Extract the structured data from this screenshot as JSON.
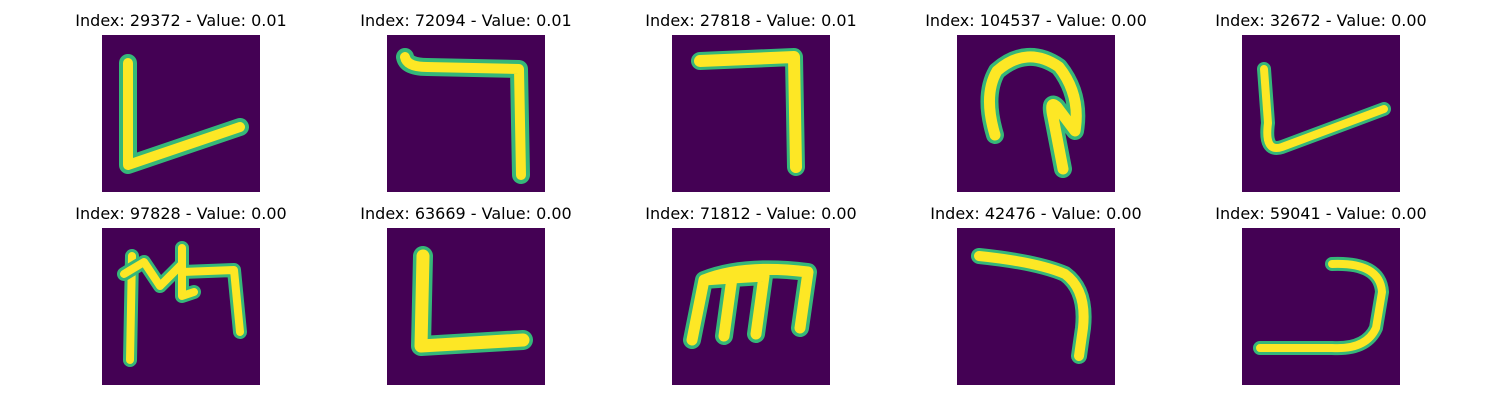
{
  "figure": {
    "background": "#ffffff",
    "colormap": {
      "background": "#440154",
      "stroke_edge": "#35b779",
      "stroke_core": "#fde725"
    },
    "panels": [
      {
        "title": "Index: 29372 - Value: 0.01"
      },
      {
        "title": "Index: 72094 - Value: 0.01"
      },
      {
        "title": "Index: 27818 - Value: 0.01"
      },
      {
        "title": "Index: 104537 - Value: 0.00"
      },
      {
        "title": "Index: 32672 - Value: 0.00"
      },
      {
        "title": "Index: 97828 - Value: 0.00"
      },
      {
        "title": "Index: 63669 - Value: 0.00"
      },
      {
        "title": "Index: 71812 - Value: 0.00"
      },
      {
        "title": "Index: 42476 - Value: 0.00"
      },
      {
        "title": "Index: 59041 - Value: 0.00"
      }
    ]
  }
}
